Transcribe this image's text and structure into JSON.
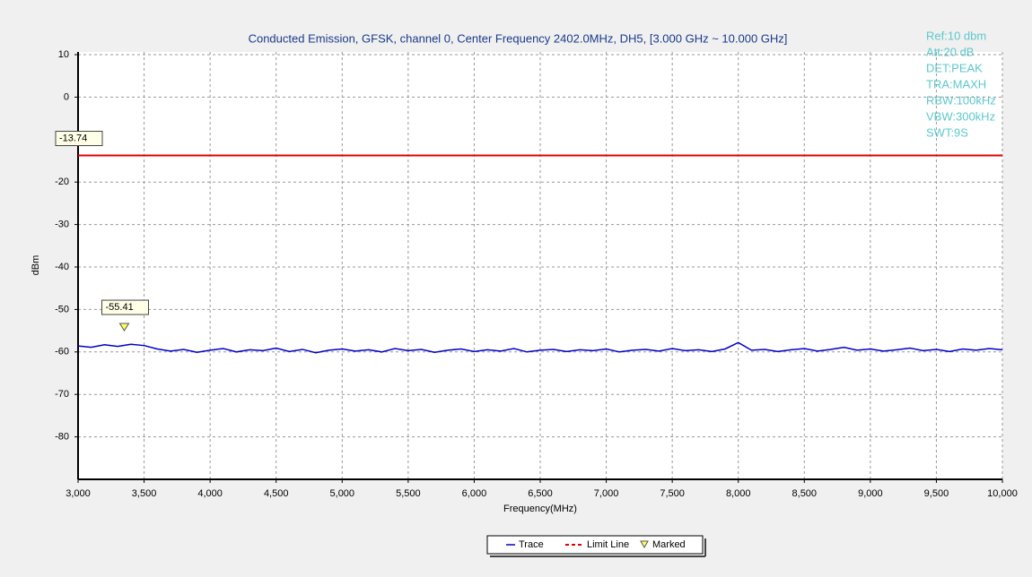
{
  "chart_data": {
    "type": "line",
    "title": "Conducted Emission, GFSK, channel 0, Center Frequency 2402.0MHz, DH5, [3.000 GHz ~ 10.000 GHz]",
    "x_label": "Frequency(MHz)",
    "y_label": "dBm",
    "settings_text": [
      "Ref:10 dbm",
      "Att:20 dB",
      "DET:PEAK",
      "TRA:MAXH",
      "RBW:100kHz",
      "VBW:300kHz",
      "SWT:9S"
    ],
    "xlim": [
      3000,
      10000
    ],
    "ylim": [
      -90,
      10
    ],
    "xticks": [
      {
        "value": 3000,
        "label": "3,000"
      },
      {
        "value": 3500,
        "label": "3,500"
      },
      {
        "value": 4000,
        "label": "4,000"
      },
      {
        "value": 4500,
        "label": "4,500"
      },
      {
        "value": 5000,
        "label": "5,000"
      },
      {
        "value": 5500,
        "label": "5,500"
      },
      {
        "value": 6000,
        "label": "6,000"
      },
      {
        "value": 6500,
        "label": "6,500"
      },
      {
        "value": 7000,
        "label": "7,000"
      },
      {
        "value": 7500,
        "label": "7,500"
      },
      {
        "value": 8000,
        "label": "8,000"
      },
      {
        "value": 8500,
        "label": "8,500"
      },
      {
        "value": 9000,
        "label": "9,000"
      },
      {
        "value": 9500,
        "label": "9,500"
      },
      {
        "value": 10000,
        "label": "10,000"
      }
    ],
    "yticks": [
      10,
      0,
      -20,
      -30,
      -40,
      -50,
      -60,
      -70,
      -80
    ],
    "grid": true,
    "series": [
      {
        "name": "Trace",
        "color": "#0000c8",
        "x": [
          3000,
          3100,
          3200,
          3300,
          3400,
          3500,
          3600,
          3700,
          3800,
          3900,
          4000,
          4100,
          4200,
          4300,
          4400,
          4500,
          4600,
          4700,
          4800,
          4900,
          5000,
          5100,
          5200,
          5300,
          5400,
          5500,
          5600,
          5700,
          5800,
          5900,
          6000,
          6100,
          6200,
          6300,
          6400,
          6500,
          6600,
          6700,
          6800,
          6900,
          7000,
          7100,
          7200,
          7300,
          7400,
          7500,
          7600,
          7700,
          7800,
          7900,
          8000,
          8100,
          8200,
          8300,
          8400,
          8500,
          8600,
          8700,
          8800,
          8900,
          9000,
          9100,
          9200,
          9300,
          9400,
          9500,
          9600,
          9700,
          9800,
          9900,
          10000
        ],
        "values": [
          -58.6,
          -58.9,
          -58.3,
          -58.7,
          -58.2,
          -58.5,
          -59.3,
          -59.8,
          -59.4,
          -60.1,
          -59.6,
          -59.2,
          -60.0,
          -59.5,
          -59.7,
          -59.1,
          -59.9,
          -59.4,
          -60.2,
          -59.6,
          -59.3,
          -59.8,
          -59.5,
          -60.0,
          -59.2,
          -59.7,
          -59.4,
          -60.1,
          -59.6,
          -59.3,
          -59.9,
          -59.5,
          -59.8,
          -59.2,
          -60.0,
          -59.6,
          -59.4,
          -59.9,
          -59.5,
          -59.7,
          -59.3,
          -60.0,
          -59.6,
          -59.4,
          -59.8,
          -59.2,
          -59.7,
          -59.5,
          -59.9,
          -59.3,
          -57.8,
          -59.6,
          -59.4,
          -59.9,
          -59.5,
          -59.2,
          -59.8,
          -59.4,
          -58.9,
          -59.6,
          -59.3,
          -59.8,
          -59.5,
          -59.1,
          -59.7,
          -59.4,
          -59.9,
          -59.3,
          -59.6,
          -59.2,
          -59.5
        ]
      }
    ],
    "limit_line": {
      "name": "Limit Line",
      "color": "#e00000",
      "value": -13.74
    },
    "marker": {
      "name": "Marked",
      "x": 3350,
      "y": -55.41
    }
  }
}
